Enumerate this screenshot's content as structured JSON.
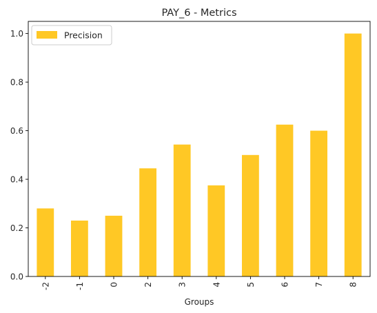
{
  "chart_data": {
    "type": "bar",
    "title": "PAY_6 - Metrics",
    "xlabel": "Groups",
    "ylabel": "",
    "categories": [
      "-2",
      "-1",
      "0",
      "2",
      "3",
      "4",
      "5",
      "6",
      "7",
      "8"
    ],
    "series": [
      {
        "name": "Precision",
        "color": "#ffc825",
        "values": [
          0.28,
          0.23,
          0.25,
          0.445,
          0.543,
          0.375,
          0.5,
          0.625,
          0.6,
          1.0
        ]
      }
    ],
    "ylim": [
      0,
      1.05
    ],
    "yticks": [
      "0.0",
      "0.2",
      "0.4",
      "0.6",
      "0.8",
      "1.0"
    ],
    "grid": false,
    "legend_position": "top-left"
  }
}
